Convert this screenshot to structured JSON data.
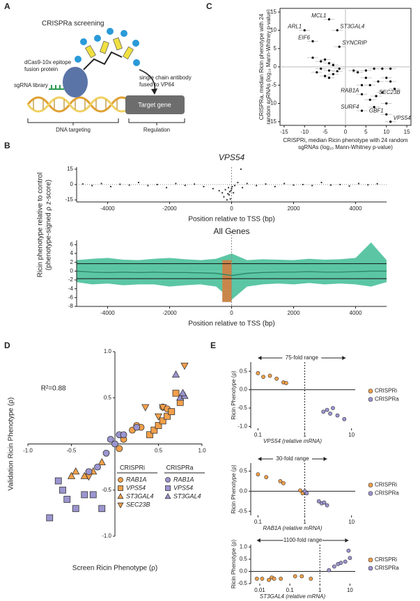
{
  "panel_labels": [
    "A",
    "B",
    "C",
    "D",
    "E"
  ],
  "diagram": {
    "title": "CRISPRa screening",
    "protein": [
      "dCas9-10x epitope",
      "fusion protein"
    ],
    "antibody": [
      "single chain antibody",
      "fused to VP64"
    ],
    "library": "sgRNA library",
    "target": "Target gene",
    "targeting": "DNA targeting",
    "regulation": "Regulation"
  },
  "chart_data": [
    {
      "type": "scatter",
      "x": [
        -4,
        -10,
        -2,
        -8,
        -1.5,
        4,
        7.5,
        4,
        10,
        11,
        -8,
        -6,
        -5,
        -4,
        -3,
        -6,
        -4,
        -7,
        -2,
        -3,
        -5,
        -1.5,
        -4,
        2,
        3,
        5,
        7,
        9,
        11,
        5,
        4,
        6,
        8,
        10,
        11,
        12,
        9,
        6,
        10,
        7
      ],
      "y": [
        13,
        10,
        10,
        7,
        5.5,
        -7.5,
        -8,
        -12,
        -13,
        -15,
        2.5,
        1.5,
        2,
        1,
        0.5,
        -0.5,
        -1,
        -1.5,
        -1.2,
        -2,
        -2.5,
        -0.5,
        -3,
        -1,
        -1.5,
        -1,
        -0.5,
        -0.5,
        -0.5,
        -3,
        -5,
        -5,
        -4,
        -3,
        -4,
        -6,
        -7,
        -9,
        -10,
        -11
      ],
      "labels": [
        "MCL1",
        "ARL1",
        "ST3GAL4",
        "EIF6",
        "SYNCRIP",
        "RAB1A",
        "SEC23B",
        "SURF4",
        "GBF1",
        "VPS54",
        null,
        null,
        null,
        null,
        null,
        null,
        null,
        null,
        null,
        null,
        null,
        null,
        null,
        null,
        null,
        null,
        null,
        null,
        null,
        null,
        null,
        null,
        null,
        null,
        null,
        null,
        null,
        null,
        null,
        null
      ],
      "color": "#000000",
      "xlim": [
        -16,
        16
      ],
      "ylim": [
        -16,
        16
      ],
      "xticks": [
        -15,
        -10,
        -5,
        0,
        5,
        10,
        15
      ],
      "yticks": [
        -15,
        -10,
        -5,
        0,
        5,
        10,
        15
      ],
      "zero_lines": true,
      "xlabel": [
        "CRISPRi, median Ricin phenotype with 24 random",
        "sgRNAs (log₁₀ Mann-Whitney p-value)"
      ],
      "ylabel": [
        "CRISPRa, median Ricin phenotype with 24",
        "random sgRNAs (log₁₀ Mann-Whitney p-value)"
      ]
    },
    {
      "type": "scatter",
      "title": "VPS54",
      "xlabel": "Position relative to TSS (bp)",
      "color": "#333333",
      "x": [
        -4800,
        -4500,
        -4200,
        -3900,
        -3600,
        -3300,
        -3000,
        -2700,
        -2400,
        -2100,
        -1800,
        -1500,
        -1200,
        -900,
        -600,
        -400,
        -300,
        -250,
        -200,
        -150,
        -120,
        -100,
        -80,
        -60,
        -40,
        -20,
        0,
        20,
        60,
        100,
        200,
        300,
        350,
        500,
        800,
        1100,
        1400,
        1700,
        2000,
        2300,
        2600,
        2900,
        3200,
        3500,
        3800,
        4100,
        4400,
        4700
      ],
      "y": [
        0.5,
        -1,
        1,
        -2,
        0.3,
        -0.5,
        2,
        -1,
        0,
        -3,
        1,
        -0.8,
        0.4,
        -2,
        -4,
        -6,
        -8,
        -12,
        -5,
        -15,
        -9,
        -3,
        -10,
        -7,
        -14,
        -6,
        -4,
        -2,
        -8,
        -1,
        2,
        15,
        -3,
        1,
        -1,
        0.5,
        -2,
        1,
        -0.5,
        0,
        -1,
        2,
        -0.5,
        0,
        -1.5,
        1,
        -0.3,
        0.8
      ],
      "xlim": [
        -5000,
        5000
      ],
      "ylim": [
        -17,
        17
      ],
      "xticks": [
        -4000,
        -2000,
        0,
        2000,
        4000
      ],
      "yticks": [
        -15,
        0,
        15
      ],
      "vline": 0
    },
    {
      "type": "area",
      "title": "All Genes",
      "xlabel": "Position relative to TSS (bp)",
      "ylabel": [
        "Ricin phenotype relative to control",
        "(phenotype-signed ρ z-score)"
      ],
      "x": [
        -5000,
        -4500,
        -4000,
        -3500,
        -3000,
        -2500,
        -2000,
        -1500,
        -1000,
        -500,
        0,
        500,
        1000,
        1500,
        2000,
        2500,
        3000,
        3500,
        4000,
        4500,
        5000
      ],
      "upper": [
        2.5,
        2.8,
        3,
        2.6,
        2.5,
        2.8,
        3,
        2.7,
        2.5,
        2.8,
        4,
        2.5,
        2.7,
        2.6,
        2.5,
        2.8,
        2.6,
        2.7,
        3,
        6.5,
        2.5
      ],
      "lower": [
        -2.5,
        -3,
        -2.8,
        -3.2,
        -3,
        -3,
        -3.5,
        -3.2,
        -3,
        -3.5,
        -6.5,
        -3.5,
        -3,
        -2.8,
        -3,
        -2.7,
        -3,
        -2.8,
        -3,
        -3.5,
        -2.5
      ],
      "median": [
        0,
        -0.2,
        -0.3,
        -0.2,
        -0.3,
        -0.2,
        -0.3,
        -0.3,
        -0.4,
        -0.5,
        -1,
        -0.5,
        -0.3,
        -0.2,
        -0.2,
        -0.1,
        -0.2,
        -0.2,
        -0.1,
        0,
        0
      ],
      "color": "#5cc6a4",
      "median_color": "#2e8a6a",
      "highlight": {
        "x": [
          -300,
          0
        ],
        "y": [
          -7,
          2.5
        ],
        "color": "#c9864a"
      },
      "hlines": [
        1.7,
        -1.7
      ],
      "xlim": [
        -5000,
        5000
      ],
      "ylim": [
        -8,
        7
      ],
      "xticks": [
        -4000,
        -2000,
        0,
        2000,
        4000
      ],
      "yticks": [
        -8,
        -6,
        -4,
        -2,
        0,
        2,
        4,
        6
      ],
      "vline": 0
    },
    {
      "type": "scatter",
      "xlabel": "Screen Ricin Phenotype (ρ)",
      "ylabel": "Validation Ricin Phenotype (ρ)",
      "annotation": "R²=0.88",
      "xlim": [
        -1,
        1
      ],
      "ylim": [
        -1,
        1
      ],
      "xticks": [
        {
          "value": -1,
          "label": "-1.0"
        },
        -0.5,
        0.5,
        {
          "value": 1,
          "label": "1.0"
        }
      ],
      "yticks": [
        {
          "value": -1,
          "label": "-1.0"
        },
        -0.5,
        0.5,
        {
          "value": 1,
          "label": "1.0"
        }
      ],
      "groups": [
        {
          "name": "CRISPRi",
          "color": "#f4a04a",
          "series": [
            {
              "name": "RAB1A",
              "marker": "circle",
              "x": [
                0.05,
                0.1,
                0.2,
                0.25,
                0.3,
                0.55,
                0.6,
                0.65
              ],
              "y": [
                -0.05,
                0.05,
                0.15,
                0.2,
                0.18,
                0.4,
                0.38,
                0.35
              ]
            },
            {
              "name": "VPS54",
              "marker": "square",
              "x": [
                0.4,
                0.45,
                0.5,
                0.55,
                0.6,
                0.65,
                0.7,
                0.75
              ],
              "y": [
                0.1,
                0.15,
                0.2,
                0.25,
                0.3,
                0.35,
                0.55,
                0.45
              ]
            },
            {
              "name": "ST3GAL4",
              "marker": "triangle-up",
              "x": [
                -0.15,
                -0.25,
                -0.35,
                -0.45,
                -0.5
              ],
              "y": [
                -0.2,
                -0.3,
                -0.35,
                -0.3,
                -0.35
              ]
            },
            {
              "name": "SEC23B",
              "marker": "triangle-down",
              "x": [
                -0.3,
                0.35,
                0.55,
                0.8,
                0.5
              ],
              "y": [
                -0.35,
                0.4,
                0.4,
                0.85,
                0.3
              ]
            }
          ]
        },
        {
          "name": "CRISPRa",
          "color": "#9b95d0",
          "series": [
            {
              "name": "RAB1A",
              "marker": "circle",
              "x": [
                -0.05,
                0,
                0.05,
                -0.1,
                -0.2,
                -0.3,
                0.1,
                0.25
              ],
              "y": [
                0.05,
                0,
                0.1,
                -0.1,
                -0.25,
                -0.3,
                0.1,
                0.18
              ]
            },
            {
              "name": "VPS54",
              "marker": "square",
              "x": [
                -0.75,
                -0.65,
                -0.6,
                -0.55,
                -0.45,
                -0.35,
                -0.25,
                -0.15
              ],
              "y": [
                -0.8,
                -0.4,
                -0.5,
                -0.6,
                -0.7,
                -0.55,
                -0.55,
                -0.7
              ]
            },
            {
              "name": "ST3GAL4",
              "marker": "triangle-up",
              "x": [
                0.7,
                0.75,
                0.8,
                0.78
              ],
              "y": [
                0.75,
                0.5,
                0.52,
                0.55
              ]
            }
          ]
        }
      ]
    },
    {
      "type": "scatter",
      "xlog": true,
      "xlabel": "VPS54 (relative mRNA)",
      "ylabel": "Ricin Phenotype (ρ)",
      "xlim": [
        0.07,
        12
      ],
      "ylim": [
        -1.05,
        0.75
      ],
      "xticks": [
        0.1,
        1,
        10
      ],
      "yticks": [
        0.5,
        {
          "value": 0,
          "label": "0.0"
        },
        -0.5,
        {
          "value": -1,
          "label": "-1.0"
        }
      ],
      "vline": 1,
      "range": {
        "label": "75-fold range",
        "x": [
          0.1,
          7.5
        ]
      },
      "series": [
        {
          "name": "CRISPRi",
          "color": "#f4a04a",
          "x": [
            0.1,
            0.13,
            0.18,
            0.25,
            0.35,
            0.4
          ],
          "y": [
            0.45,
            0.35,
            0.38,
            0.3,
            0.2,
            0.18
          ]
        },
        {
          "name": "CRISPRa",
          "color": "#9b95d0",
          "x": [
            2.5,
            3,
            3.5,
            4,
            5,
            7
          ],
          "y": [
            -0.6,
            -0.55,
            -0.65,
            -0.5,
            -0.7,
            -0.8
          ]
        }
      ]
    },
    {
      "type": "scatter",
      "xlog": true,
      "xlabel": "RAB1A (relative mRNA)",
      "ylabel": "Ricin Phenotype (ρ)",
      "xlim": [
        0.07,
        12
      ],
      "ylim": [
        -0.6,
        0.7
      ],
      "xticks": [
        0.1,
        1,
        10
      ],
      "yticks": [
        0.5,
        {
          "value": 0,
          "label": "0.0"
        },
        -0.5
      ],
      "vline": 1,
      "range": {
        "label": "30-fold range",
        "x": [
          0.1,
          3
        ]
      },
      "series": [
        {
          "name": "CRISPRi",
          "color": "#f4a04a",
          "x": [
            0.1,
            0.15,
            0.3,
            0.35,
            0.8,
            0.9
          ],
          "y": [
            0.42,
            0.35,
            0.25,
            0.2,
            0.02,
            -0.05
          ]
        },
        {
          "name": "CRISPRa",
          "color": "#9b95d0",
          "x": [
            1,
            1.1,
            2,
            2.3,
            2.6,
            3
          ],
          "y": [
            0,
            -0.05,
            -0.25,
            -0.3,
            -0.28,
            -0.35
          ]
        }
      ]
    },
    {
      "type": "scatter",
      "xlog": true,
      "xlabel": "ST3GAL4 (relative mRNA)",
      "ylabel": "Ricin Phenotype (ρ)",
      "xlim": [
        0.005,
        15
      ],
      "ylim": [
        -0.5,
        1.1
      ],
      "xticks": [
        0.01,
        0.1,
        1,
        10
      ],
      "yticks": [
        {
          "value": 1,
          "label": "1.0"
        },
        0.5,
        {
          "value": 0,
          "label": "0.0"
        },
        -0.5
      ],
      "vline": 1,
      "range": {
        "label": "1100-fold range",
        "x": [
          0.008,
          9
        ]
      },
      "series": [
        {
          "name": "CRISPRi",
          "color": "#f4a04a",
          "x": [
            0.008,
            0.012,
            0.02,
            0.025,
            0.03,
            0.05,
            0.15,
            0.25,
            0.5
          ],
          "y": [
            -0.3,
            -0.3,
            -0.35,
            -0.25,
            -0.3,
            -0.3,
            -0.2,
            -0.2,
            -0.3
          ]
        },
        {
          "name": "CRISPRa",
          "color": "#9b95d0",
          "x": [
            2,
            3,
            4,
            5,
            7,
            9,
            10
          ],
          "y": [
            0.05,
            0.2,
            0.3,
            0.35,
            0.4,
            0.85,
            0.55
          ]
        }
      ]
    }
  ]
}
